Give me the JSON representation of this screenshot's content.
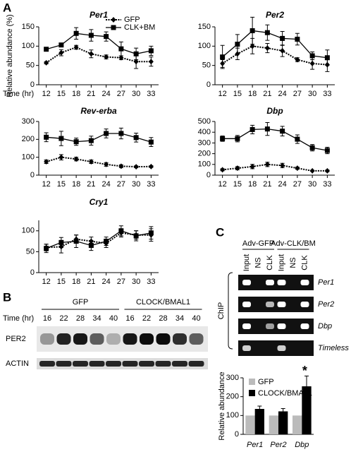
{
  "figure": {
    "panel_a": "A"
  },
  "chart_data": [
    {
      "type": "line",
      "title": "Per1",
      "y_label": "Relative abundance (%)",
      "x_label": "Time (hr)",
      "x": [
        12,
        15,
        18,
        21,
        24,
        27,
        30,
        33
      ],
      "xlim": [
        10.5,
        34.5
      ],
      "xticks": [
        12,
        15,
        18,
        21,
        24,
        27,
        30,
        33
      ],
      "ylim": [
        0,
        150
      ],
      "yticks": [
        0,
        50,
        100,
        150
      ],
      "series": [
        {
          "name": "GFP",
          "color": "#000000",
          "marker": "diamond",
          "dashed": true,
          "values": [
            57,
            83,
            97,
            80,
            72,
            70,
            60,
            60
          ],
          "errors": [
            3,
            8,
            5,
            10,
            5,
            5,
            18,
            12
          ]
        },
        {
          "name": "CLK+BM",
          "color": "#000000",
          "marker": "square",
          "dashed": false,
          "values": [
            92,
            103,
            133,
            128,
            125,
            93,
            80,
            88
          ],
          "errors": [
            5,
            5,
            15,
            15,
            12,
            18,
            15,
            12
          ]
        }
      ]
    },
    {
      "type": "line",
      "title": "Per2",
      "x": [
        12,
        15,
        18,
        21,
        24,
        27,
        30,
        33
      ],
      "xlim": [
        10.5,
        34.5
      ],
      "xticks": [
        12,
        15,
        18,
        21,
        24,
        27,
        30,
        33
      ],
      "ylim": [
        0,
        150
      ],
      "yticks": [
        0,
        50,
        100,
        150
      ],
      "series": [
        {
          "color": "#000000",
          "marker": "diamond",
          "dashed": true,
          "values": [
            55,
            80,
            100,
            95,
            88,
            65,
            55,
            52
          ],
          "errors": [
            10,
            15,
            20,
            12,
            15,
            5,
            15,
            18
          ]
        },
        {
          "color": "#000000",
          "marker": "square",
          "dashed": false,
          "values": [
            72,
            105,
            140,
            135,
            120,
            118,
            75,
            70
          ],
          "errors": [
            30,
            25,
            35,
            20,
            18,
            15,
            10,
            20
          ]
        }
      ]
    },
    {
      "type": "line",
      "title": "Rev-erba",
      "x": [
        12,
        15,
        18,
        21,
        24,
        27,
        30,
        33
      ],
      "xlim": [
        10.5,
        34.5
      ],
      "xticks": [
        12,
        15,
        18,
        21,
        24,
        27,
        30,
        33
      ],
      "ylim": [
        0,
        300
      ],
      "yticks": [
        0,
        100,
        200,
        300
      ],
      "series": [
        {
          "color": "#000000",
          "marker": "diamond",
          "dashed": true,
          "values": [
            75,
            100,
            90,
            75,
            60,
            50,
            47,
            48
          ],
          "errors": [
            10,
            15,
            10,
            10,
            10,
            8,
            5,
            5
          ]
        },
        {
          "color": "#000000",
          "marker": "square",
          "dashed": false,
          "values": [
            212,
            205,
            187,
            193,
            233,
            233,
            210,
            185
          ],
          "errors": [
            25,
            40,
            20,
            25,
            25,
            30,
            25,
            25
          ]
        }
      ]
    },
    {
      "type": "line",
      "title": "Dbp",
      "x": [
        12,
        15,
        18,
        21,
        24,
        27,
        30,
        33
      ],
      "xlim": [
        10.5,
        34.5
      ],
      "xticks": [
        12,
        15,
        18,
        21,
        24,
        27,
        30,
        33
      ],
      "ylim": [
        0,
        500
      ],
      "yticks": [
        0,
        100,
        200,
        300,
        400,
        500
      ],
      "series": [
        {
          "color": "#000000",
          "marker": "diamond",
          "dashed": true,
          "values": [
            50,
            65,
            80,
            100,
            90,
            65,
            40,
            40
          ],
          "errors": [
            10,
            15,
            20,
            20,
            20,
            10,
            5,
            8
          ]
        },
        {
          "color": "#000000",
          "marker": "square",
          "dashed": false,
          "values": [
            340,
            340,
            425,
            430,
            410,
            335,
            255,
            230
          ],
          "errors": [
            25,
            30,
            40,
            60,
            45,
            40,
            30,
            30
          ]
        }
      ]
    },
    {
      "type": "line",
      "title": "Cry1",
      "x": [
        12,
        15,
        18,
        21,
        24,
        27,
        30,
        33
      ],
      "xlim": [
        10.5,
        34.5
      ],
      "xticks": [
        12,
        15,
        18,
        21,
        24,
        27,
        30,
        33
      ],
      "ylim": [
        0,
        125
      ],
      "yticks": [
        0,
        50,
        100
      ],
      "series": [
        {
          "color": "#000000",
          "marker": "diamond",
          "dashed": true,
          "values": [
            60,
            62,
            80,
            75,
            70,
            95,
            90,
            90
          ],
          "errors": [
            8,
            15,
            10,
            10,
            10,
            10,
            10,
            15
          ]
        },
        {
          "color": "#000000",
          "marker": "square",
          "dashed": false,
          "values": [
            58,
            72,
            75,
            65,
            75,
            100,
            88,
            95
          ],
          "errors": [
            10,
            12,
            15,
            12,
            10,
            12,
            12,
            15
          ]
        }
      ]
    },
    {
      "type": "bar",
      "y_label": "Relative abundance",
      "categories": [
        "Per1",
        "Per2",
        "Dbp"
      ],
      "ylim": [
        0,
        300
      ],
      "yticks": [
        0,
        100,
        200,
        300
      ],
      "series": [
        {
          "name": "GFP",
          "color": "#bbbbbb",
          "values": [
            100,
            100,
            100
          ]
        },
        {
          "name": "CLOCK/BMAL1",
          "color": "#000000",
          "values": [
            135,
            122,
            255
          ],
          "errors": [
            15,
            15,
            55
          ]
        }
      ],
      "annotations": [
        {
          "text": "*",
          "category": "Dbp"
        }
      ]
    }
  ],
  "blot": {
    "label": "B",
    "time_label": "Time (hr)",
    "groups": [
      {
        "name": "GFP",
        "times": [
          "16",
          "22",
          "28",
          "34",
          "40"
        ]
      },
      {
        "name": "CLOCK/BMAL1",
        "times": [
          "16",
          "22",
          "28",
          "34",
          "40"
        ]
      }
    ],
    "rows": [
      "PER2",
      "ACTIN"
    ]
  },
  "gel": {
    "label": "C",
    "side_label": "ChIP",
    "groups": [
      {
        "name": "Adv-GFP",
        "lanes": [
          "Input",
          "NS",
          "CLK"
        ]
      },
      {
        "name": "Adv-CLK/BM",
        "lanes": [
          "Input",
          "NS",
          "CLK"
        ]
      }
    ],
    "rows": [
      "Per1",
      "Per2",
      "Dbp",
      "Timeless"
    ]
  }
}
